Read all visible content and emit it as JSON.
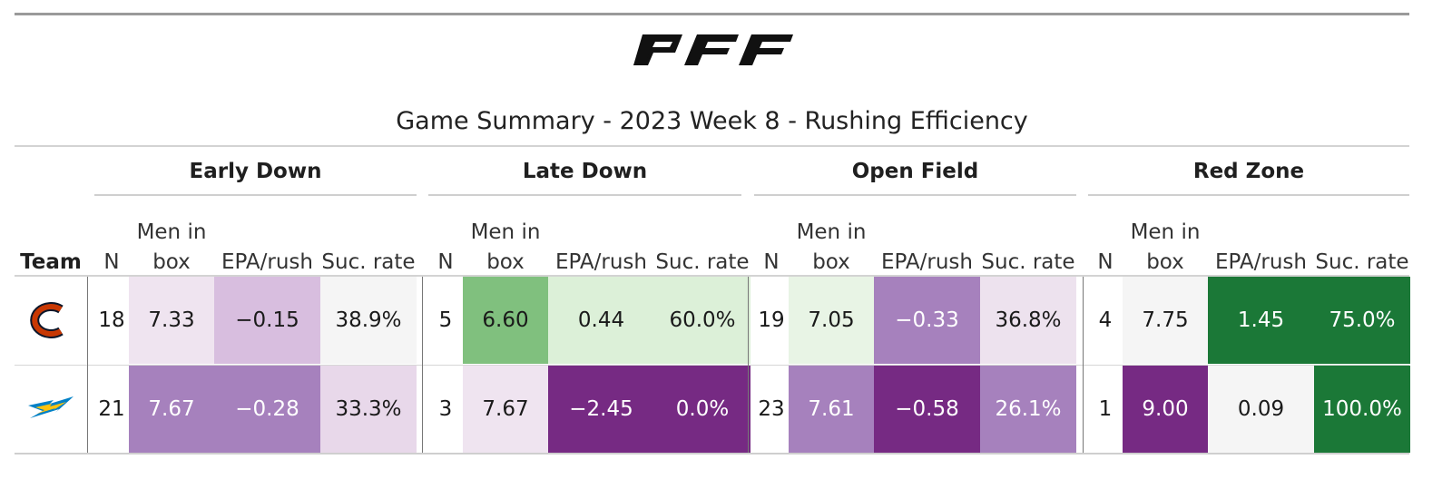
{
  "title": "Game Summary - 2023 Week 8 - Rushing Efficiency",
  "logo_text": "PFF",
  "team_header": "Team",
  "groups": [
    "Early Down",
    "Late Down",
    "Open Field",
    "Red Zone"
  ],
  "subcolumns": [
    "N",
    "Men in box",
    "EPA/rush",
    "Suc. rate"
  ],
  "teams": [
    {
      "icon": "bears-logo-icon",
      "colors": {
        "primary": "#0b162a",
        "accent": "#c83803"
      },
      "cells": [
        [
          "18",
          "7.33",
          "−0.15",
          "38.9%"
        ],
        [
          "5",
          "6.60",
          "0.44",
          "60.0%"
        ],
        [
          "19",
          "7.05",
          "−0.33",
          "36.8%"
        ],
        [
          "4",
          "7.75",
          "1.45",
          "75.0%"
        ]
      ],
      "fills": [
        [
          "#ffffff",
          "#efe4f0",
          "#d8bedf",
          "#f5f5f5"
        ],
        [
          "#ffffff",
          "#80c07e",
          "#dcf0d8",
          "#dcf0d8"
        ],
        [
          "#ffffff",
          "#e8f4e5",
          "#a681bd",
          "#ede2ee"
        ],
        [
          "#ffffff",
          "#f5f5f5",
          "#1b7837",
          "#1b7837"
        ]
      ]
    },
    {
      "icon": "chargers-logo-icon",
      "colors": {
        "primary": "#0080c6",
        "accent": "#ffc20e"
      },
      "cells": [
        [
          "21",
          "7.67",
          "−0.28",
          "33.3%"
        ],
        [
          "3",
          "7.67",
          "−2.45",
          "0.0%"
        ],
        [
          "23",
          "7.61",
          "−0.58",
          "26.1%"
        ],
        [
          "1",
          "9.00",
          "0.09",
          "100.0%"
        ]
      ],
      "fills": [
        [
          "#ffffff",
          "#a681bd",
          "#a681bd",
          "#e8d8ea"
        ],
        [
          "#ffffff",
          "#efe4f0",
          "#762a83",
          "#762a83"
        ],
        [
          "#ffffff",
          "#a681bd",
          "#762a83",
          "#a681bd"
        ],
        [
          "#ffffff",
          "#762a83",
          "#f5f5f5",
          "#1b7837"
        ]
      ]
    }
  ],
  "chart_data": {
    "type": "table",
    "title": "Game Summary - 2023 Week 8 - Rushing Efficiency",
    "column_groups": [
      "Early Down",
      "Late Down",
      "Open Field",
      "Red Zone"
    ],
    "columns": [
      "N",
      "Men in box",
      "EPA/rush",
      "Suc. rate"
    ],
    "rows": [
      {
        "team": "Bears",
        "values": [
          [
            18,
            7.33,
            -0.15,
            "38.9%"
          ],
          [
            5,
            6.6,
            0.44,
            "60.0%"
          ],
          [
            19,
            7.05,
            -0.33,
            "36.8%"
          ],
          [
            4,
            7.75,
            1.45,
            "75.0%"
          ]
        ]
      },
      {
        "team": "Chargers",
        "values": [
          [
            21,
            7.67,
            -0.28,
            "33.3%"
          ],
          [
            3,
            7.67,
            -2.45,
            "0.0%"
          ],
          [
            23,
            7.61,
            -0.58,
            "26.1%"
          ],
          [
            1,
            9.0,
            0.09,
            "100.0%"
          ]
        ]
      }
    ],
    "color_scale": {
      "negative": "#762a83",
      "neutral": "#f5f5f5",
      "positive": "#1b7837"
    }
  }
}
